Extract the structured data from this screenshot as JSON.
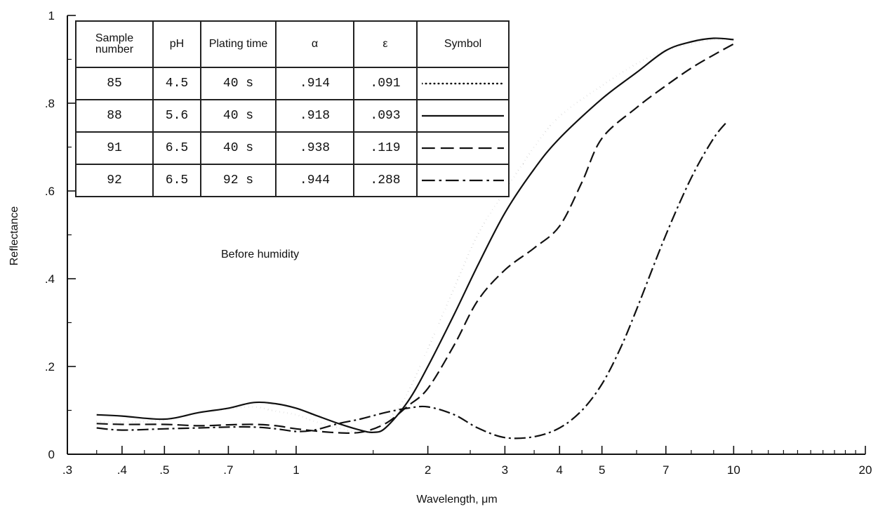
{
  "chart_data": {
    "type": "line",
    "xlabel": "Wavelength, μm",
    "ylabel": "Reflectance",
    "xscale": "log",
    "xlim": [
      0.3,
      20
    ],
    "ylim": [
      0,
      1
    ],
    "x_ticks": [
      {
        "v": 0.3,
        "label": ".3"
      },
      {
        "v": 0.4,
        "label": ".4"
      },
      {
        "v": 0.5,
        "label": ".5"
      },
      {
        "v": 0.7,
        "label": ".7"
      },
      {
        "v": 1,
        "label": "1"
      },
      {
        "v": 2,
        "label": "2"
      },
      {
        "v": 3,
        "label": "3"
      },
      {
        "v": 4,
        "label": "4"
      },
      {
        "v": 5,
        "label": "5"
      },
      {
        "v": 7,
        "label": "7"
      },
      {
        "v": 10,
        "label": "10"
      },
      {
        "v": 20,
        "label": "20"
      }
    ],
    "y_ticks": [
      {
        "v": 0,
        "label": "0"
      },
      {
        "v": 0.2,
        "label": ".2"
      },
      {
        "v": 0.4,
        "label": ".4"
      },
      {
        "v": 0.6,
        "label": ".6"
      },
      {
        "v": 0.8,
        "label": ".8"
      },
      {
        "v": 1,
        "label": "1"
      }
    ],
    "annotation": "Before humidity",
    "series": [
      {
        "sample": "85",
        "style": "dotted",
        "points": [
          [
            0.35,
            0.075
          ],
          [
            0.4,
            0.073
          ],
          [
            0.5,
            0.078
          ],
          [
            0.6,
            0.095
          ],
          [
            0.7,
            0.103
          ],
          [
            0.8,
            0.108
          ],
          [
            0.9,
            0.098
          ],
          [
            1.0,
            0.09
          ],
          [
            1.1,
            0.075
          ],
          [
            1.25,
            0.06
          ],
          [
            1.4,
            0.05
          ],
          [
            1.55,
            0.065
          ],
          [
            1.75,
            0.12
          ],
          [
            2.0,
            0.24
          ],
          [
            2.3,
            0.38
          ],
          [
            2.6,
            0.5
          ],
          [
            3.0,
            0.6
          ],
          [
            3.5,
            0.7
          ],
          [
            4.0,
            0.77
          ],
          [
            5.0,
            0.84
          ],
          [
            6.0,
            0.89
          ],
          [
            7.0,
            0.92
          ],
          [
            8.0,
            0.935
          ],
          [
            9.0,
            0.945
          ],
          [
            10.0,
            0.945
          ]
        ]
      },
      {
        "sample": "88",
        "style": "solid",
        "points": [
          [
            0.35,
            0.09
          ],
          [
            0.4,
            0.087
          ],
          [
            0.5,
            0.08
          ],
          [
            0.6,
            0.095
          ],
          [
            0.7,
            0.105
          ],
          [
            0.8,
            0.118
          ],
          [
            0.9,
            0.115
          ],
          [
            1.0,
            0.105
          ],
          [
            1.1,
            0.09
          ],
          [
            1.25,
            0.07
          ],
          [
            1.4,
            0.055
          ],
          [
            1.5,
            0.05
          ],
          [
            1.6,
            0.06
          ],
          [
            1.8,
            0.12
          ],
          [
            2.0,
            0.2
          ],
          [
            2.3,
            0.32
          ],
          [
            2.6,
            0.43
          ],
          [
            3.0,
            0.55
          ],
          [
            3.5,
            0.65
          ],
          [
            4.0,
            0.72
          ],
          [
            5.0,
            0.81
          ],
          [
            6.0,
            0.87
          ],
          [
            7.0,
            0.92
          ],
          [
            8.0,
            0.94
          ],
          [
            9.0,
            0.948
          ],
          [
            10.0,
            0.945
          ]
        ]
      },
      {
        "sample": "91",
        "style": "dashed",
        "points": [
          [
            0.35,
            0.07
          ],
          [
            0.4,
            0.068
          ],
          [
            0.5,
            0.068
          ],
          [
            0.6,
            0.065
          ],
          [
            0.7,
            0.067
          ],
          [
            0.8,
            0.068
          ],
          [
            0.9,
            0.065
          ],
          [
            1.0,
            0.058
          ],
          [
            1.2,
            0.05
          ],
          [
            1.4,
            0.05
          ],
          [
            1.6,
            0.07
          ],
          [
            1.8,
            0.11
          ],
          [
            2.0,
            0.15
          ],
          [
            2.3,
            0.25
          ],
          [
            2.6,
            0.35
          ],
          [
            3.0,
            0.42
          ],
          [
            3.5,
            0.47
          ],
          [
            4.0,
            0.52
          ],
          [
            4.5,
            0.62
          ],
          [
            5.0,
            0.72
          ],
          [
            6.0,
            0.79
          ],
          [
            7.0,
            0.84
          ],
          [
            8.0,
            0.88
          ],
          [
            9.0,
            0.91
          ],
          [
            10.0,
            0.935
          ]
        ]
      },
      {
        "sample": "92",
        "style": "dash-dot",
        "points": [
          [
            0.35,
            0.06
          ],
          [
            0.4,
            0.055
          ],
          [
            0.5,
            0.058
          ],
          [
            0.6,
            0.06
          ],
          [
            0.7,
            0.062
          ],
          [
            0.8,
            0.062
          ],
          [
            0.9,
            0.058
          ],
          [
            1.0,
            0.052
          ],
          [
            1.1,
            0.055
          ],
          [
            1.25,
            0.07
          ],
          [
            1.4,
            0.08
          ],
          [
            1.6,
            0.095
          ],
          [
            1.8,
            0.105
          ],
          [
            2.0,
            0.108
          ],
          [
            2.3,
            0.09
          ],
          [
            2.6,
            0.06
          ],
          [
            3.0,
            0.038
          ],
          [
            3.5,
            0.04
          ],
          [
            4.0,
            0.06
          ],
          [
            4.5,
            0.1
          ],
          [
            5.0,
            0.16
          ],
          [
            5.5,
            0.24
          ],
          [
            6.0,
            0.33
          ],
          [
            7.0,
            0.5
          ],
          [
            8.0,
            0.63
          ],
          [
            9.0,
            0.72
          ],
          [
            9.7,
            0.76
          ]
        ]
      }
    ]
  },
  "legend_table": {
    "headers": [
      "Sample number",
      "pH",
      "Plating time",
      "α",
      "ε",
      "Symbol"
    ],
    "rows": [
      {
        "sample": "85",
        "ph": "4.5",
        "time": "40 s",
        "alpha": ".914",
        "epsilon": ".091",
        "symbol": "dotted"
      },
      {
        "sample": "88",
        "ph": "5.6",
        "time": "40 s",
        "alpha": ".918",
        "epsilon": ".093",
        "symbol": "solid"
      },
      {
        "sample": "91",
        "ph": "6.5",
        "time": "40 s",
        "alpha": ".938",
        "epsilon": ".119",
        "symbol": "dashed"
      },
      {
        "sample": "92",
        "ph": "6.5",
        "time": "92 s",
        "alpha": ".944",
        "epsilon": ".288",
        "symbol": "dash-dot"
      }
    ]
  }
}
